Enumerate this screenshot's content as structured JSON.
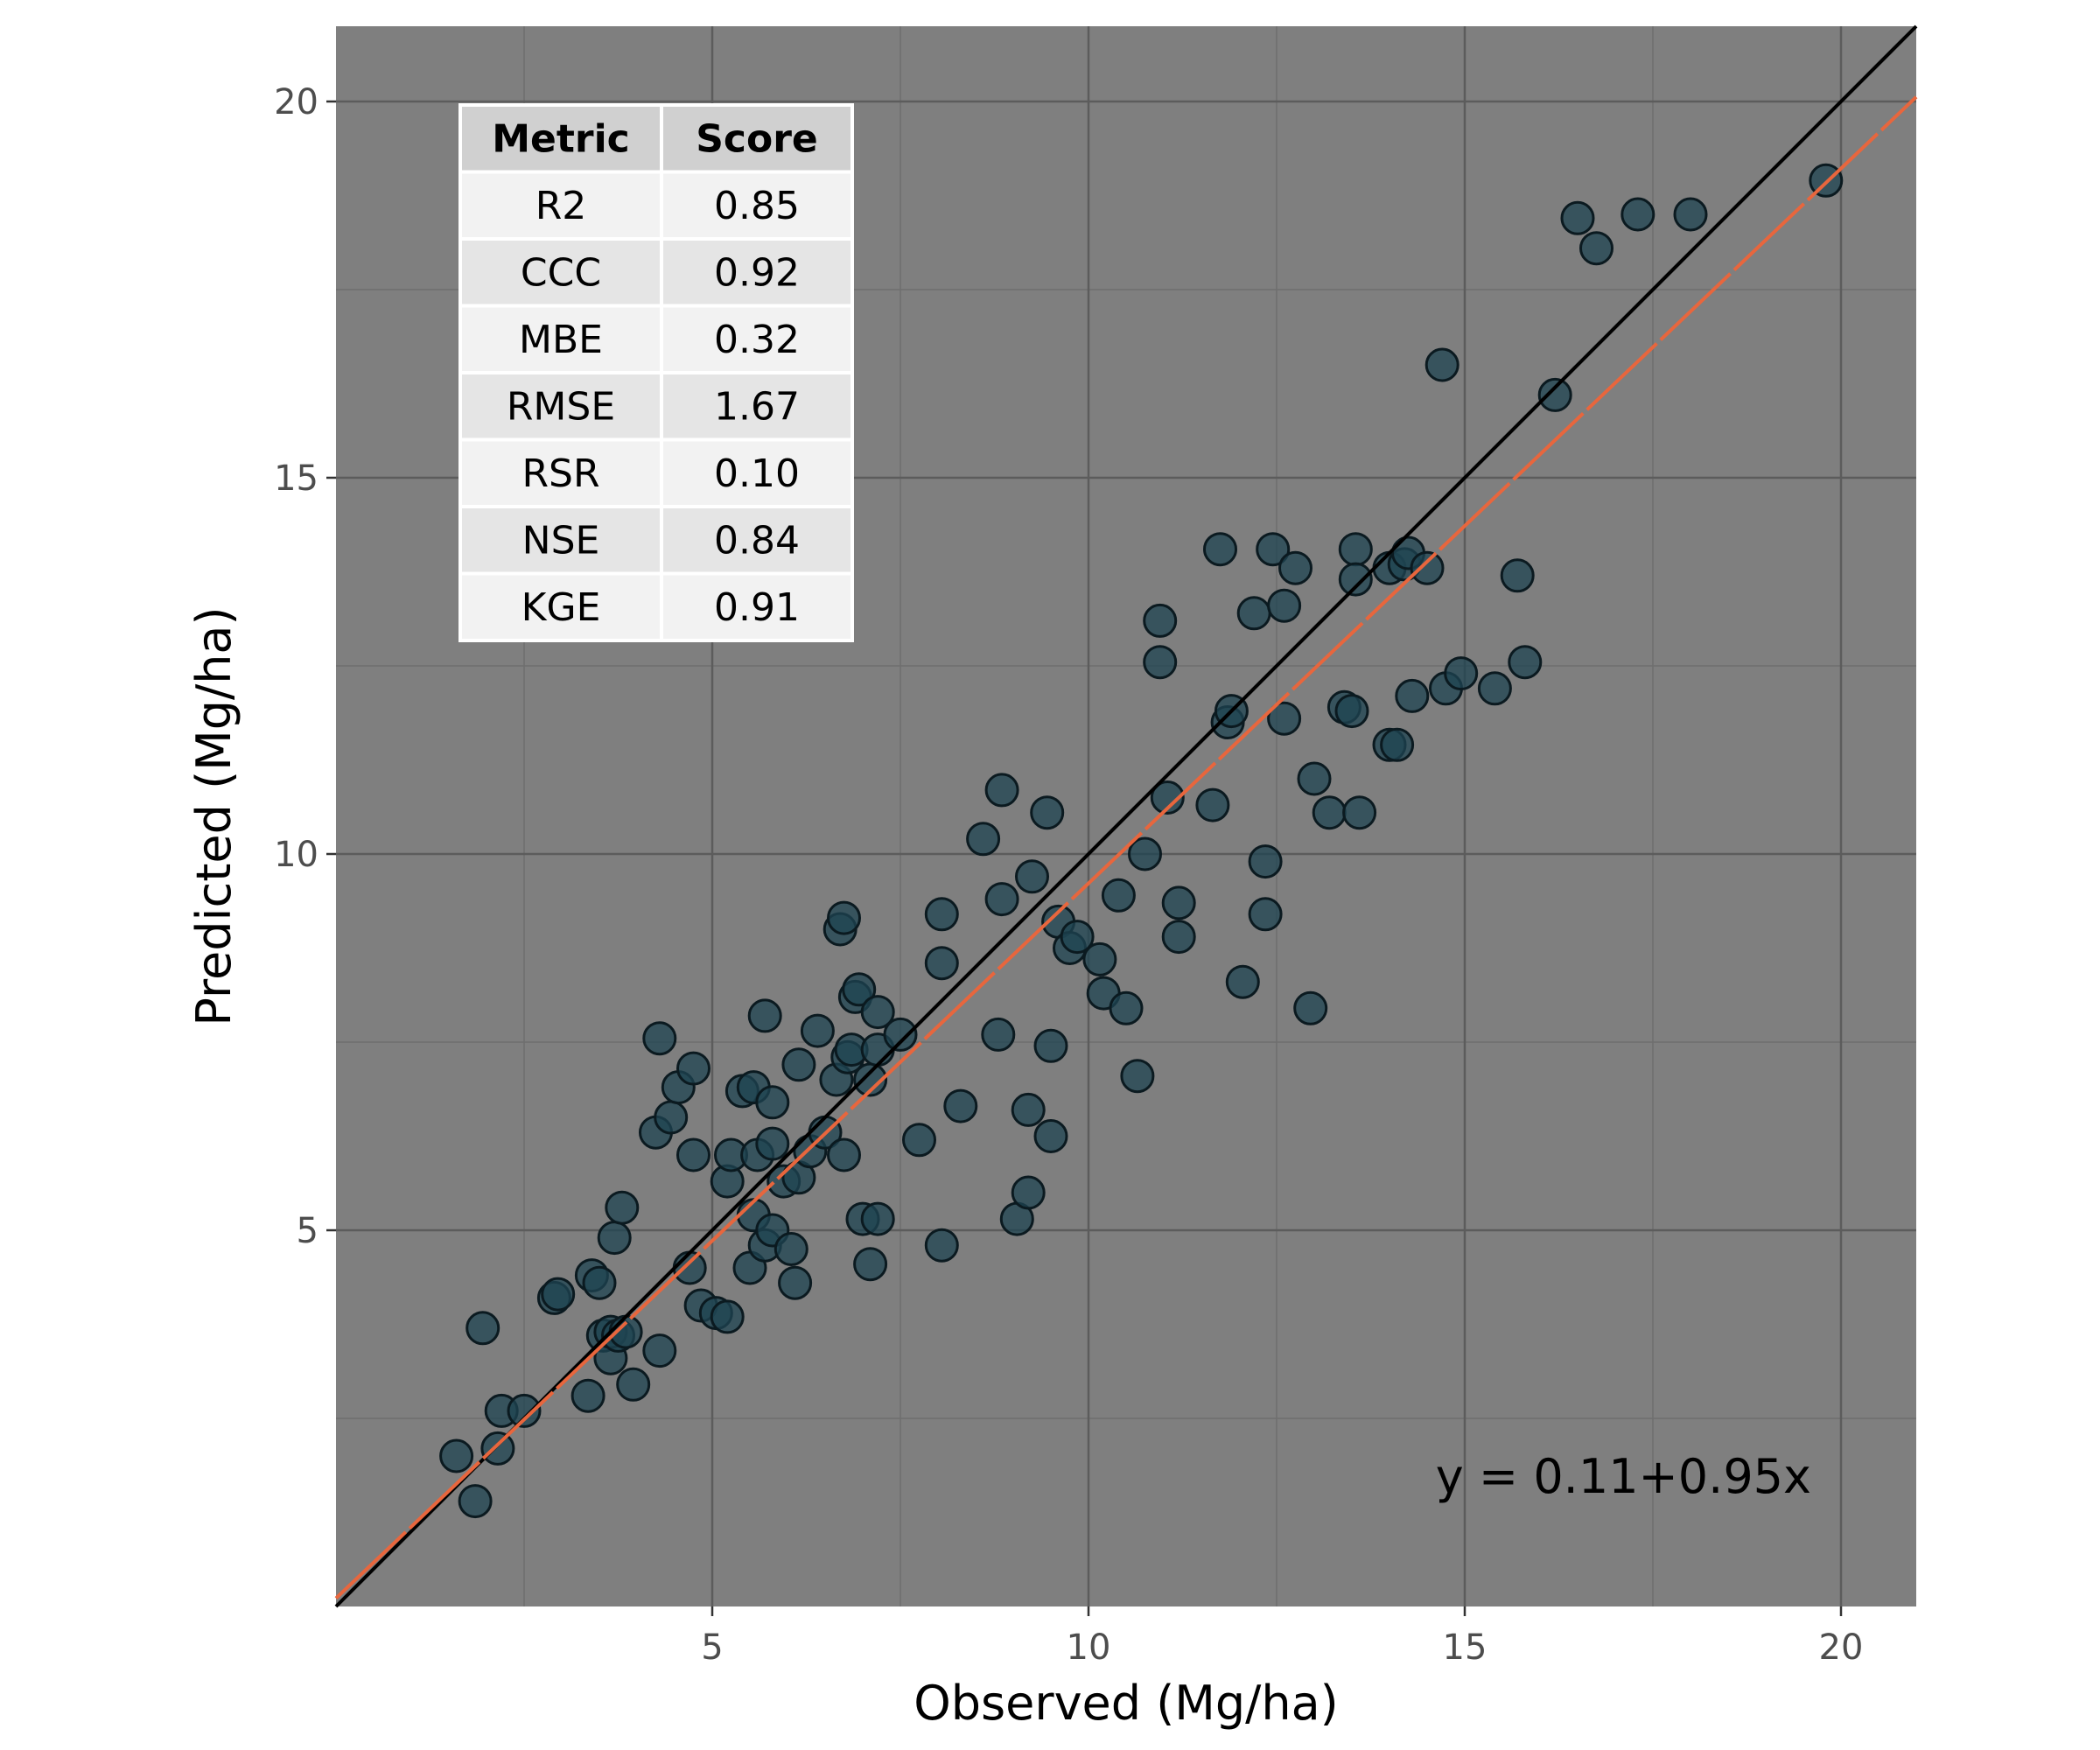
{
  "chart_data": {
    "type": "scatter",
    "xlabel": "Observed (Mg/ha)",
    "ylabel": "Predicted (Mg/ha)",
    "xlim": [
      0.0,
      21.0
    ],
    "ylim": [
      0.0,
      21.0
    ],
    "xticks": [
      5,
      10,
      15,
      20
    ],
    "yticks": [
      5,
      10,
      15,
      20
    ],
    "grid": true,
    "colors": {
      "panel": "#7f7f7f",
      "grid_major": "#5c5c5c",
      "grid_minor": "#6e6e6e",
      "points": "#1f4452",
      "identity_line": "#000000",
      "fit_line": "#e8663d"
    },
    "identity_line": {
      "intercept": 0,
      "slope": 1
    },
    "fit_line": {
      "intercept": 0.11,
      "slope": 0.95
    },
    "equation": "y = 0.11+0.95x",
    "metrics_table": {
      "headers": [
        "Metric",
        "Score"
      ],
      "rows": [
        [
          "R2",
          "0.85"
        ],
        [
          "CCC",
          "0.92"
        ],
        [
          "MBE",
          "0.32"
        ],
        [
          "RMSE",
          "1.67"
        ],
        [
          "RSR",
          "0.10"
        ],
        [
          "NSE",
          "0.84"
        ],
        [
          "KGE",
          "0.91"
        ]
      ]
    },
    "points": [
      [
        1.6,
        2.0
      ],
      [
        1.85,
        1.4
      ],
      [
        1.95,
        3.7
      ],
      [
        2.15,
        2.1
      ],
      [
        2.2,
        2.6
      ],
      [
        2.5,
        2.6
      ],
      [
        2.9,
        4.1
      ],
      [
        2.95,
        4.15
      ],
      [
        3.35,
        2.8
      ],
      [
        3.4,
        4.4
      ],
      [
        3.5,
        4.3
      ],
      [
        3.55,
        3.6
      ],
      [
        3.65,
        3.3
      ],
      [
        3.65,
        3.65
      ],
      [
        3.7,
        4.9
      ],
      [
        3.75,
        3.6
      ],
      [
        3.8,
        5.3
      ],
      [
        3.85,
        3.65
      ],
      [
        3.95,
        2.95
      ],
      [
        4.25,
        6.3
      ],
      [
        4.3,
        7.55
      ],
      [
        4.3,
        3.4
      ],
      [
        4.45,
        6.5
      ],
      [
        4.55,
        6.9
      ],
      [
        4.7,
        4.5
      ],
      [
        4.75,
        6.0
      ],
      [
        4.75,
        7.15
      ],
      [
        4.85,
        4.0
      ],
      [
        5.05,
        3.9
      ],
      [
        5.2,
        5.65
      ],
      [
        5.2,
        3.85
      ],
      [
        5.25,
        6.0
      ],
      [
        5.4,
        6.85
      ],
      [
        5.55,
        5.2
      ],
      [
        5.5,
        4.5
      ],
      [
        5.55,
        6.9
      ],
      [
        5.6,
        6.0
      ],
      [
        5.7,
        4.8
      ],
      [
        5.7,
        7.85
      ],
      [
        5.8,
        6.7
      ],
      [
        5.8,
        6.15
      ],
      [
        5.8,
        5.0
      ],
      [
        5.95,
        5.65
      ],
      [
        6.05,
        4.75
      ],
      [
        6.1,
        4.3
      ],
      [
        6.15,
        7.2
      ],
      [
        6.15,
        5.7
      ],
      [
        6.3,
        6.05
      ],
      [
        6.4,
        7.65
      ],
      [
        6.5,
        6.3
      ],
      [
        6.65,
        7.0
      ],
      [
        6.7,
        9.0
      ],
      [
        6.75,
        9.15
      ],
      [
        6.75,
        6.0
      ],
      [
        6.8,
        7.3
      ],
      [
        6.85,
        7.4
      ],
      [
        6.9,
        8.1
      ],
      [
        6.95,
        8.2
      ],
      [
        7.0,
        5.15
      ],
      [
        7.1,
        4.55
      ],
      [
        7.1,
        7.0
      ],
      [
        7.2,
        5.15
      ],
      [
        7.2,
        7.9
      ],
      [
        7.2,
        7.4
      ],
      [
        7.5,
        7.6
      ],
      [
        7.75,
        6.2
      ],
      [
        8.05,
        8.55
      ],
      [
        8.05,
        9.2
      ],
      [
        8.05,
        4.8
      ],
      [
        8.3,
        6.65
      ],
      [
        8.6,
        10.2
      ],
      [
        8.8,
        7.6
      ],
      [
        8.85,
        10.85
      ],
      [
        8.85,
        9.4
      ],
      [
        9.05,
        5.15
      ],
      [
        9.2,
        5.5
      ],
      [
        9.2,
        6.6
      ],
      [
        9.25,
        9.7
      ],
      [
        9.45,
        10.55
      ],
      [
        9.5,
        7.45
      ],
      [
        9.5,
        6.25
      ],
      [
        9.6,
        9.1
      ],
      [
        9.75,
        8.75
      ],
      [
        9.85,
        8.9
      ],
      [
        10.15,
        8.6
      ],
      [
        10.2,
        8.15
      ],
      [
        10.4,
        9.45
      ],
      [
        10.5,
        7.95
      ],
      [
        10.65,
        7.05
      ],
      [
        10.75,
        10.0
      ],
      [
        10.95,
        13.1
      ],
      [
        10.95,
        12.55
      ],
      [
        11.05,
        10.75
      ],
      [
        11.2,
        9.35
      ],
      [
        11.2,
        8.9
      ],
      [
        11.65,
        10.65
      ],
      [
        11.75,
        14.05
      ],
      [
        11.85,
        11.75
      ],
      [
        11.9,
        11.9
      ],
      [
        12.05,
        8.3
      ],
      [
        12.2,
        13.2
      ],
      [
        12.35,
        9.9
      ],
      [
        12.35,
        9.2
      ],
      [
        12.45,
        14.05
      ],
      [
        12.6,
        13.3
      ],
      [
        12.6,
        11.8
      ],
      [
        12.75,
        13.8
      ],
      [
        12.95,
        7.95
      ],
      [
        13.0,
        11.0
      ],
      [
        13.2,
        10.55
      ],
      [
        13.4,
        11.95
      ],
      [
        13.5,
        11.9
      ],
      [
        13.55,
        14.05
      ],
      [
        13.55,
        13.65
      ],
      [
        13.6,
        10.55
      ],
      [
        14.0,
        13.8
      ],
      [
        14.0,
        11.45
      ],
      [
        14.1,
        11.45
      ],
      [
        14.2,
        13.85
      ],
      [
        14.25,
        14.0
      ],
      [
        14.3,
        12.1
      ],
      [
        14.5,
        13.8
      ],
      [
        14.7,
        16.5
      ],
      [
        14.75,
        12.2
      ],
      [
        14.95,
        12.4
      ],
      [
        15.4,
        12.2
      ],
      [
        15.7,
        13.7
      ],
      [
        15.8,
        12.55
      ],
      [
        16.2,
        16.1
      ],
      [
        16.5,
        18.45
      ],
      [
        16.75,
        18.05
      ],
      [
        17.3,
        18.5
      ],
      [
        18.0,
        18.5
      ],
      [
        19.8,
        18.95
      ]
    ]
  }
}
